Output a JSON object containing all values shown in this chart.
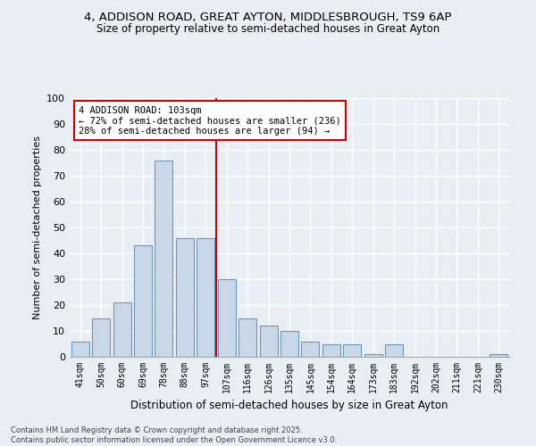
{
  "title_line1": "4, ADDISON ROAD, GREAT AYTON, MIDDLESBROUGH, TS9 6AP",
  "title_line2": "Size of property relative to semi-detached houses in Great Ayton",
  "xlabel": "Distribution of semi-detached houses by size in Great Ayton",
  "ylabel": "Number of semi-detached properties",
  "categories": [
    "41sqm",
    "50sqm",
    "60sqm",
    "69sqm",
    "78sqm",
    "88sqm",
    "97sqm",
    "107sqm",
    "116sqm",
    "126sqm",
    "135sqm",
    "145sqm",
    "154sqm",
    "164sqm",
    "173sqm",
    "183sqm",
    "192sqm",
    "202sqm",
    "211sqm",
    "221sqm",
    "230sqm"
  ],
  "values": [
    6,
    15,
    21,
    43,
    76,
    46,
    46,
    30,
    15,
    12,
    10,
    6,
    5,
    5,
    1,
    5,
    0,
    0,
    0,
    0,
    1
  ],
  "bar_color": "#c8d8e8",
  "bar_edge_color": "#6699bb",
  "background_color": "#e8eef4",
  "grid_color": "#ffffff",
  "annotation_title": "4 ADDISON ROAD: 103sqm",
  "annotation_line1": "← 72% of semi-detached houses are smaller (236)",
  "annotation_line2": "28% of semi-detached houses are larger (94) →",
  "annotation_box_color": "#ffffff",
  "annotation_box_edge_color": "#cc0000",
  "vline_color": "#cc0000",
  "ylim": [
    0,
    100
  ],
  "yticks": [
    0,
    10,
    20,
    30,
    40,
    50,
    60,
    70,
    80,
    90,
    100
  ],
  "footer_line1": "Contains HM Land Registry data © Crown copyright and database right 2025.",
  "footer_line2": "Contains public sector information licensed under the Open Government Licence v3.0.",
  "vline_pos": 6.5
}
